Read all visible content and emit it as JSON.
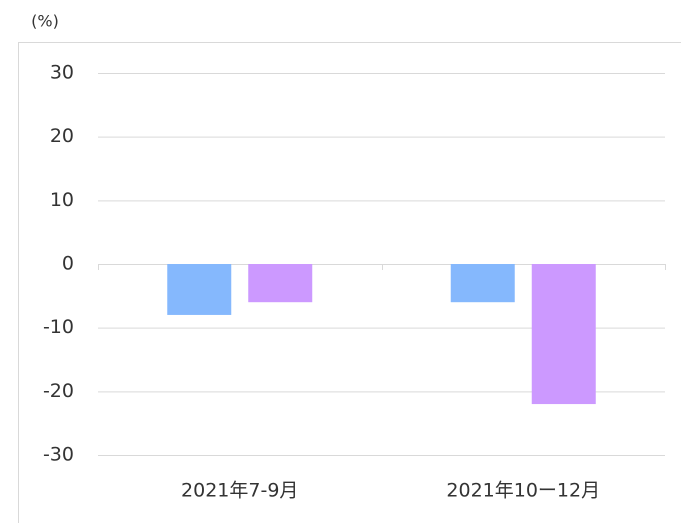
{
  "chart_data": {
    "type": "bar",
    "y_label": "(%)",
    "categories": [
      "2021年7-9月",
      "2021年10ー12月"
    ],
    "series": [
      {
        "color": "#85b8fd",
        "values": [
          -8,
          -6
        ]
      },
      {
        "color": "#cc99ff",
        "values": [
          -6,
          -22
        ]
      }
    ],
    "ylim": [
      -30,
      30
    ],
    "yticks": [
      -30,
      -20,
      -10,
      0,
      10,
      20,
      30
    ],
    "grid": true
  }
}
